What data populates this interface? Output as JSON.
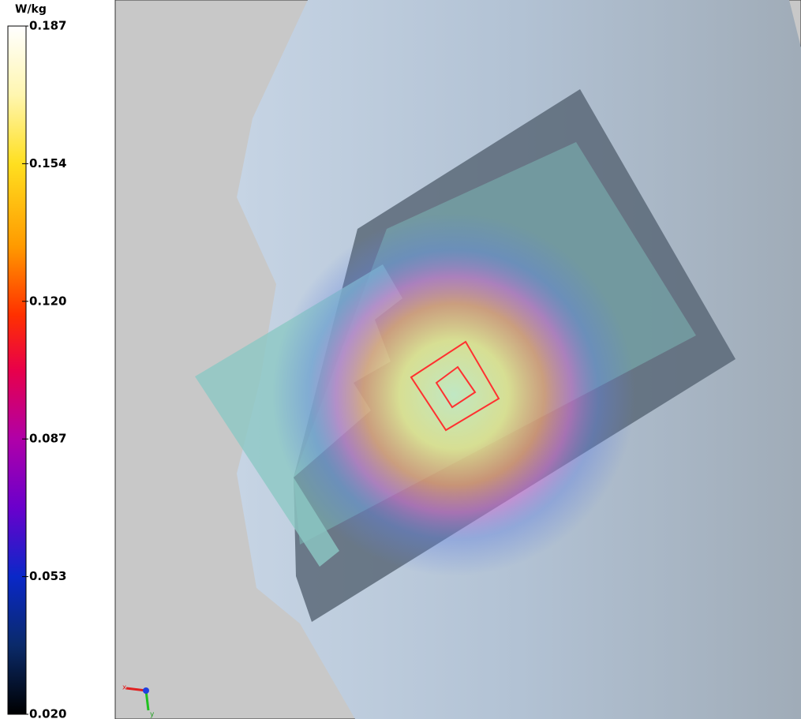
{
  "colorbar": {
    "unit": "W/kg",
    "ticks": [
      "0.187",
      "0.154",
      "0.120",
      "0.087",
      "0.053",
      "0.020"
    ]
  },
  "axes": {
    "x": "x",
    "y": "y"
  }
}
